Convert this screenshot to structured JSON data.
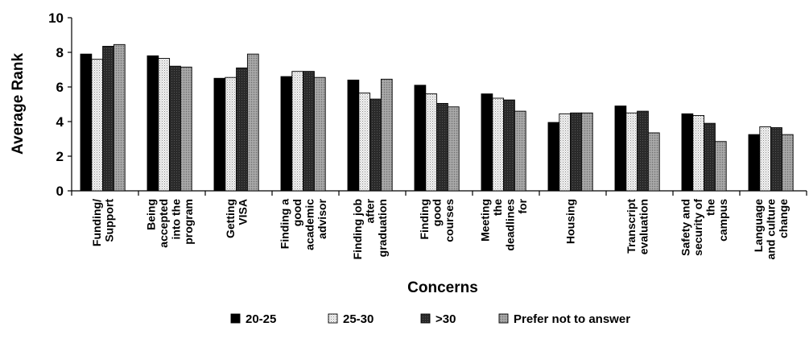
{
  "chart_data": {
    "type": "bar",
    "title": "",
    "xlabel": "Concerns",
    "ylabel": "Average Rank",
    "ylim": [
      0,
      10
    ],
    "yticks": [
      "0",
      "2",
      "4",
      "6",
      "8",
      "10"
    ],
    "grid": false,
    "legend_position": "bottom",
    "categories": [
      [
        "Funding/",
        "Support"
      ],
      [
        "Being",
        "accepted",
        "into the",
        "program"
      ],
      [
        "Getting",
        "VISA"
      ],
      [
        "Finding a",
        "good",
        "academic",
        "advisor"
      ],
      [
        "Finding job",
        "after",
        "graduation"
      ],
      [
        "Finding",
        "good",
        "courses"
      ],
      [
        "Meeting",
        "the",
        "deadlines",
        "for"
      ],
      [
        "Housing"
      ],
      [
        "Transcript",
        "evaluation"
      ],
      [
        "Safety and",
        "security of",
        "the",
        "campus"
      ],
      [
        "Language",
        "and culture",
        "change"
      ]
    ],
    "series": [
      {
        "name": "20-25",
        "values": [
          7.9,
          7.8,
          6.5,
          6.6,
          6.4,
          6.1,
          5.6,
          3.95,
          4.9,
          4.45,
          3.25
        ]
      },
      {
        "name": "25-30",
        "values": [
          7.6,
          7.65,
          6.55,
          6.9,
          5.65,
          5.6,
          5.35,
          4.45,
          4.5,
          4.35,
          3.7
        ]
      },
      {
        "name": ">30",
        "values": [
          8.35,
          7.2,
          7.1,
          6.9,
          5.3,
          5.05,
          5.25,
          4.5,
          4.6,
          3.9,
          3.65
        ]
      },
      {
        "name": "Prefer not to answer",
        "values": [
          8.45,
          7.15,
          7.9,
          6.55,
          6.45,
          4.85,
          4.6,
          4.5,
          3.35,
          2.85,
          3.25
        ]
      }
    ],
    "colors": [
      "#000000",
      "#dcdcdc",
      "#2f2f2f",
      "#a9a9a9"
    ],
    "patterns": [
      "solid",
      "dotted",
      "dark-hatched",
      "gray-hatched"
    ]
  }
}
